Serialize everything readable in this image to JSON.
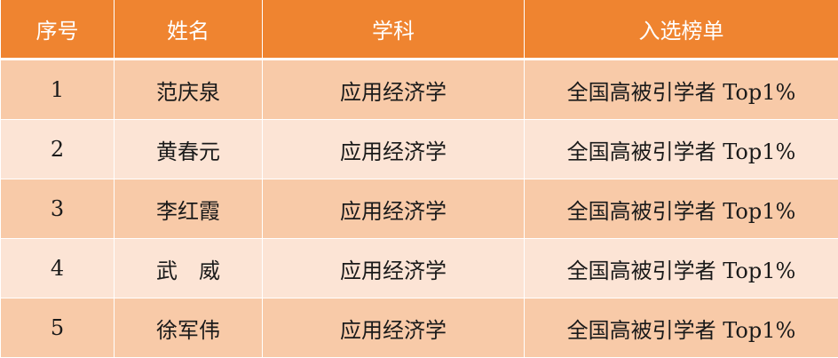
{
  "colors": {
    "header": "#EF8430",
    "row_odd": "#F8CAA8",
    "row_even": "#FCE4D5"
  },
  "headers": [
    "序号",
    "姓名",
    "学科",
    "入选榜单"
  ],
  "rows": [
    [
      "1",
      "范庆泉",
      "应用经济学",
      "全国高被引学者 Top1%"
    ],
    [
      "2",
      "黄春元",
      "应用经济学",
      "全国高被引学者 Top1%"
    ],
    [
      "3",
      "李红霞",
      "应用经济学",
      "全国高被引学者 Top1%"
    ],
    [
      "4",
      "武　威",
      "应用经济学",
      "全国高被引学者 Top1%"
    ],
    [
      "5",
      "徐军伟",
      "应用经济学",
      "全国高被引学者 Top1%"
    ]
  ]
}
